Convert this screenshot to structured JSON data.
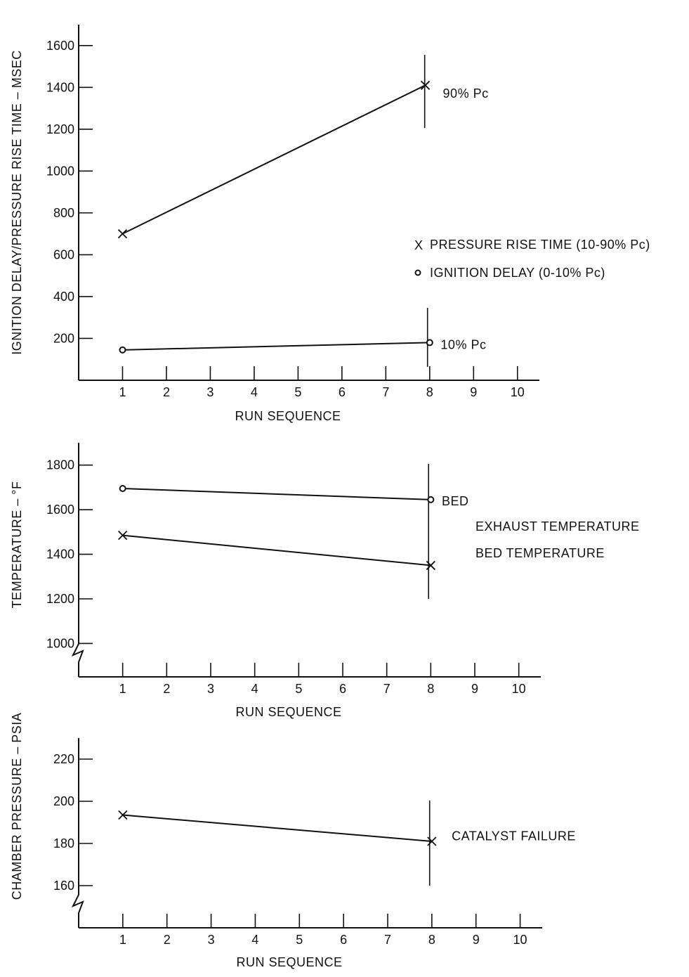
{
  "chart_data": [
    {
      "type": "line",
      "xlabel": "RUN SEQUENCE",
      "ylabel": "IGNITION DELAY/PRESSURE RISE TIME – MSEC",
      "xlim": [
        0,
        10.5
      ],
      "ylim": [
        0,
        1700
      ],
      "x_ticks": [
        1,
        2,
        3,
        4,
        5,
        6,
        7,
        8,
        9,
        10
      ],
      "y_ticks": [
        200,
        400,
        600,
        800,
        1000,
        1200,
        1400,
        1600
      ],
      "vertical_marker_x": 7.95,
      "series": [
        {
          "name": "PRESSURE RISE TIME (10-90% Pc)",
          "marker": "x",
          "x": [
            1,
            7.9
          ],
          "y": [
            700,
            1410
          ]
        },
        {
          "name": "IGNITION DELAY (0-10% Pc)",
          "marker": "o",
          "x": [
            1,
            8
          ],
          "y": [
            145,
            180
          ]
        }
      ],
      "annotations": [
        {
          "text": "90% Pc",
          "x": 8.3,
          "y": 1350
        },
        {
          "text": "10% Pc",
          "x": 8.25,
          "y": 150
        }
      ],
      "legend": [
        {
          "symbol": "X",
          "text": "PRESSURE RISE TIME (10-90% Pc)"
        },
        {
          "symbol": "o",
          "text": "IGNITION DELAY (0-10% Pc)"
        }
      ]
    },
    {
      "type": "line",
      "xlabel": "RUN SEQUENCE",
      "ylabel": "TEMPERATURE – °F",
      "xlim": [
        0,
        10.5
      ],
      "ylim": [
        850,
        1900
      ],
      "axis_break": true,
      "x_ticks": [
        1,
        2,
        3,
        4,
        5,
        6,
        7,
        8,
        9,
        10
      ],
      "y_ticks": [
        1000,
        1200,
        1400,
        1600,
        1800
      ],
      "vertical_marker_x": 7.95,
      "series": [
        {
          "marker": "o",
          "x": [
            1,
            8
          ],
          "y": [
            1695,
            1645
          ]
        },
        {
          "marker": "x",
          "x": [
            1,
            8
          ],
          "y": [
            1485,
            1350
          ]
        }
      ],
      "annotations": [
        {
          "text": "BED",
          "x": 8.25,
          "y": 1620
        }
      ],
      "legend": [
        {
          "text": "EXHAUST TEMPERATURE"
        },
        {
          "text": "BED TEMPERATURE"
        }
      ]
    },
    {
      "type": "line",
      "xlabel": "RUN SEQUENCE",
      "ylabel": "CHAMBER PRESSURE – PSIA",
      "xlim": [
        0,
        10.5
      ],
      "ylim": [
        140,
        230
      ],
      "axis_break": true,
      "x_ticks": [
        1,
        2,
        3,
        4,
        5,
        6,
        7,
        8,
        9,
        10
      ],
      "y_ticks": [
        160,
        180,
        200,
        220
      ],
      "vertical_marker_x": 7.95,
      "series": [
        {
          "marker": "x",
          "x": [
            1,
            8
          ],
          "y": [
            193.5,
            181
          ]
        }
      ],
      "annotations": [
        {
          "text": "CATALYST FAILURE",
          "x": 8.45,
          "y": 181.5
        }
      ]
    }
  ]
}
